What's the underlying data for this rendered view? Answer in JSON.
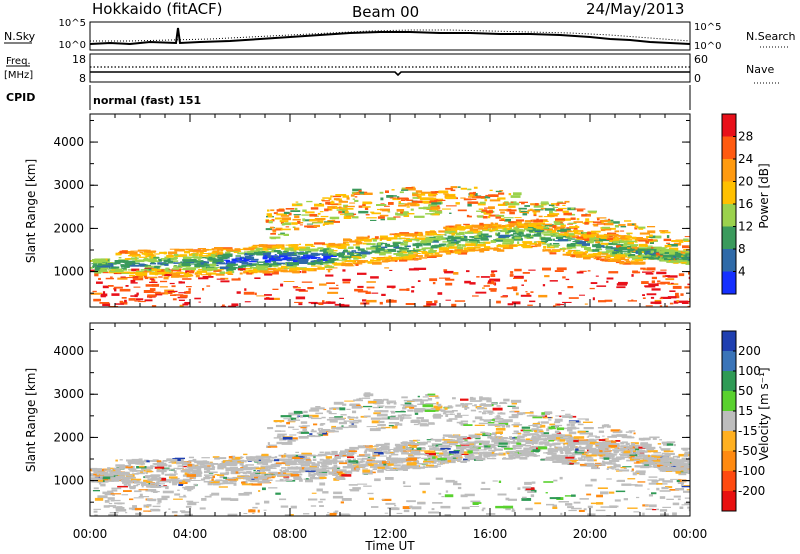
{
  "header": {
    "title_left": "Hokkaido (fitACF)",
    "title_center": "Beam 00",
    "title_right": "24/May/2013"
  },
  "noise_panel": {
    "label_left": "N.Sky",
    "label_right": "N.Search",
    "tick_top_left": "10^5",
    "tick_bottom_left": "10^0",
    "tick_top_right": "10^5",
    "tick_bottom_right": "10^0"
  },
  "freq_panel": {
    "label_left_line1": "Freq.",
    "label_left_line2": "[MHz]",
    "label_right": "Nave",
    "tick_top_left": "18",
    "tick_bottom_left": "8",
    "tick_top_right": "60",
    "tick_bottom_right": "0"
  },
  "cpid_panel": {
    "label": "CPID",
    "value": "normal (fast) 151"
  },
  "power_colorbar": {
    "label": "Power [dB]",
    "ticks": [
      "28",
      "24",
      "20",
      "16",
      "12",
      "8",
      "4"
    ],
    "colors": [
      "#e8101a",
      "#ff5a10",
      "#ff9a10",
      "#ffc000",
      "#9bd24d",
      "#3a9a5c",
      "#2f6aa8",
      "#1530ff"
    ]
  },
  "velocity_colorbar": {
    "label": "Velocity [m s⁻¹]",
    "ticks": [
      "200",
      "100",
      "50",
      "15",
      "-15",
      "-50",
      "-100",
      "-200"
    ],
    "colors": [
      "#1f3fb0",
      "#3a74b8",
      "#2f9a55",
      "#59d12e",
      "#bdbdbd",
      "#ffb020",
      "#ff8a10",
      "#ff4a10",
      "#e81010"
    ]
  },
  "chart_data": [
    {
      "type": "heatmap",
      "panel": "power",
      "ylabel": "Slant Range [km]",
      "ylim": [
        180,
        4650
      ],
      "xlim": [
        0,
        24
      ],
      "yticks": [
        "1000",
        "2000",
        "3000",
        "4000"
      ],
      "xticks": [
        "00:00",
        "04:00",
        "08:00",
        "12:00",
        "16:00",
        "20:00",
        "00:00"
      ],
      "xlabel": "Time UT"
    },
    {
      "type": "heatmap",
      "panel": "velocity",
      "ylabel": "Slant Range [km]",
      "ylim": [
        180,
        4650
      ],
      "xlim": [
        0,
        24
      ],
      "yticks": [
        "1000",
        "2000",
        "3000",
        "4000"
      ],
      "xticks": [
        "00:00",
        "04:00",
        "08:00",
        "12:00",
        "16:00",
        "20:00",
        "00:00"
      ],
      "xlabel": "Time UT"
    }
  ]
}
